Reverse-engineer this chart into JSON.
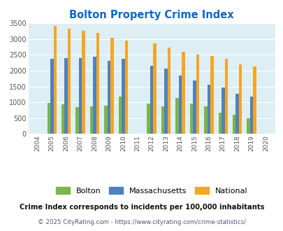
{
  "title": "Bolton Property Crime Index",
  "years": [
    2004,
    2005,
    2006,
    2007,
    2008,
    2009,
    2010,
    2011,
    2012,
    2013,
    2014,
    2015,
    2016,
    2017,
    2018,
    2019,
    2020
  ],
  "bolton": [
    0,
    980,
    940,
    850,
    880,
    900,
    1180,
    0,
    960,
    880,
    1130,
    950,
    860,
    680,
    600,
    490,
    0
  ],
  "massachusetts": [
    0,
    2370,
    2400,
    2400,
    2440,
    2310,
    2370,
    0,
    2160,
    2060,
    1850,
    1680,
    1560,
    1460,
    1260,
    1180,
    0
  ],
  "national": [
    0,
    3420,
    3330,
    3260,
    3200,
    3040,
    2950,
    0,
    2860,
    2730,
    2600,
    2500,
    2470,
    2370,
    2200,
    2130,
    0
  ],
  "bolton_color": "#7ab648",
  "mass_color": "#4f81bd",
  "national_color": "#f5a623",
  "bg_color": "#ddeef5",
  "ylim": [
    0,
    3500
  ],
  "yticks": [
    0,
    500,
    1000,
    1500,
    2000,
    2500,
    3000,
    3500
  ],
  "title_color": "#1565c0",
  "legend_labels": [
    "Bolton",
    "Massachusetts",
    "National"
  ],
  "footnote1": "Crime Index corresponds to incidents per 100,000 inhabitants",
  "footnote2": "© 2025 CityRating.com - https://www.cityrating.com/crime-statistics/",
  "footnote1_color": "#111111",
  "footnote2_color": "#555577"
}
